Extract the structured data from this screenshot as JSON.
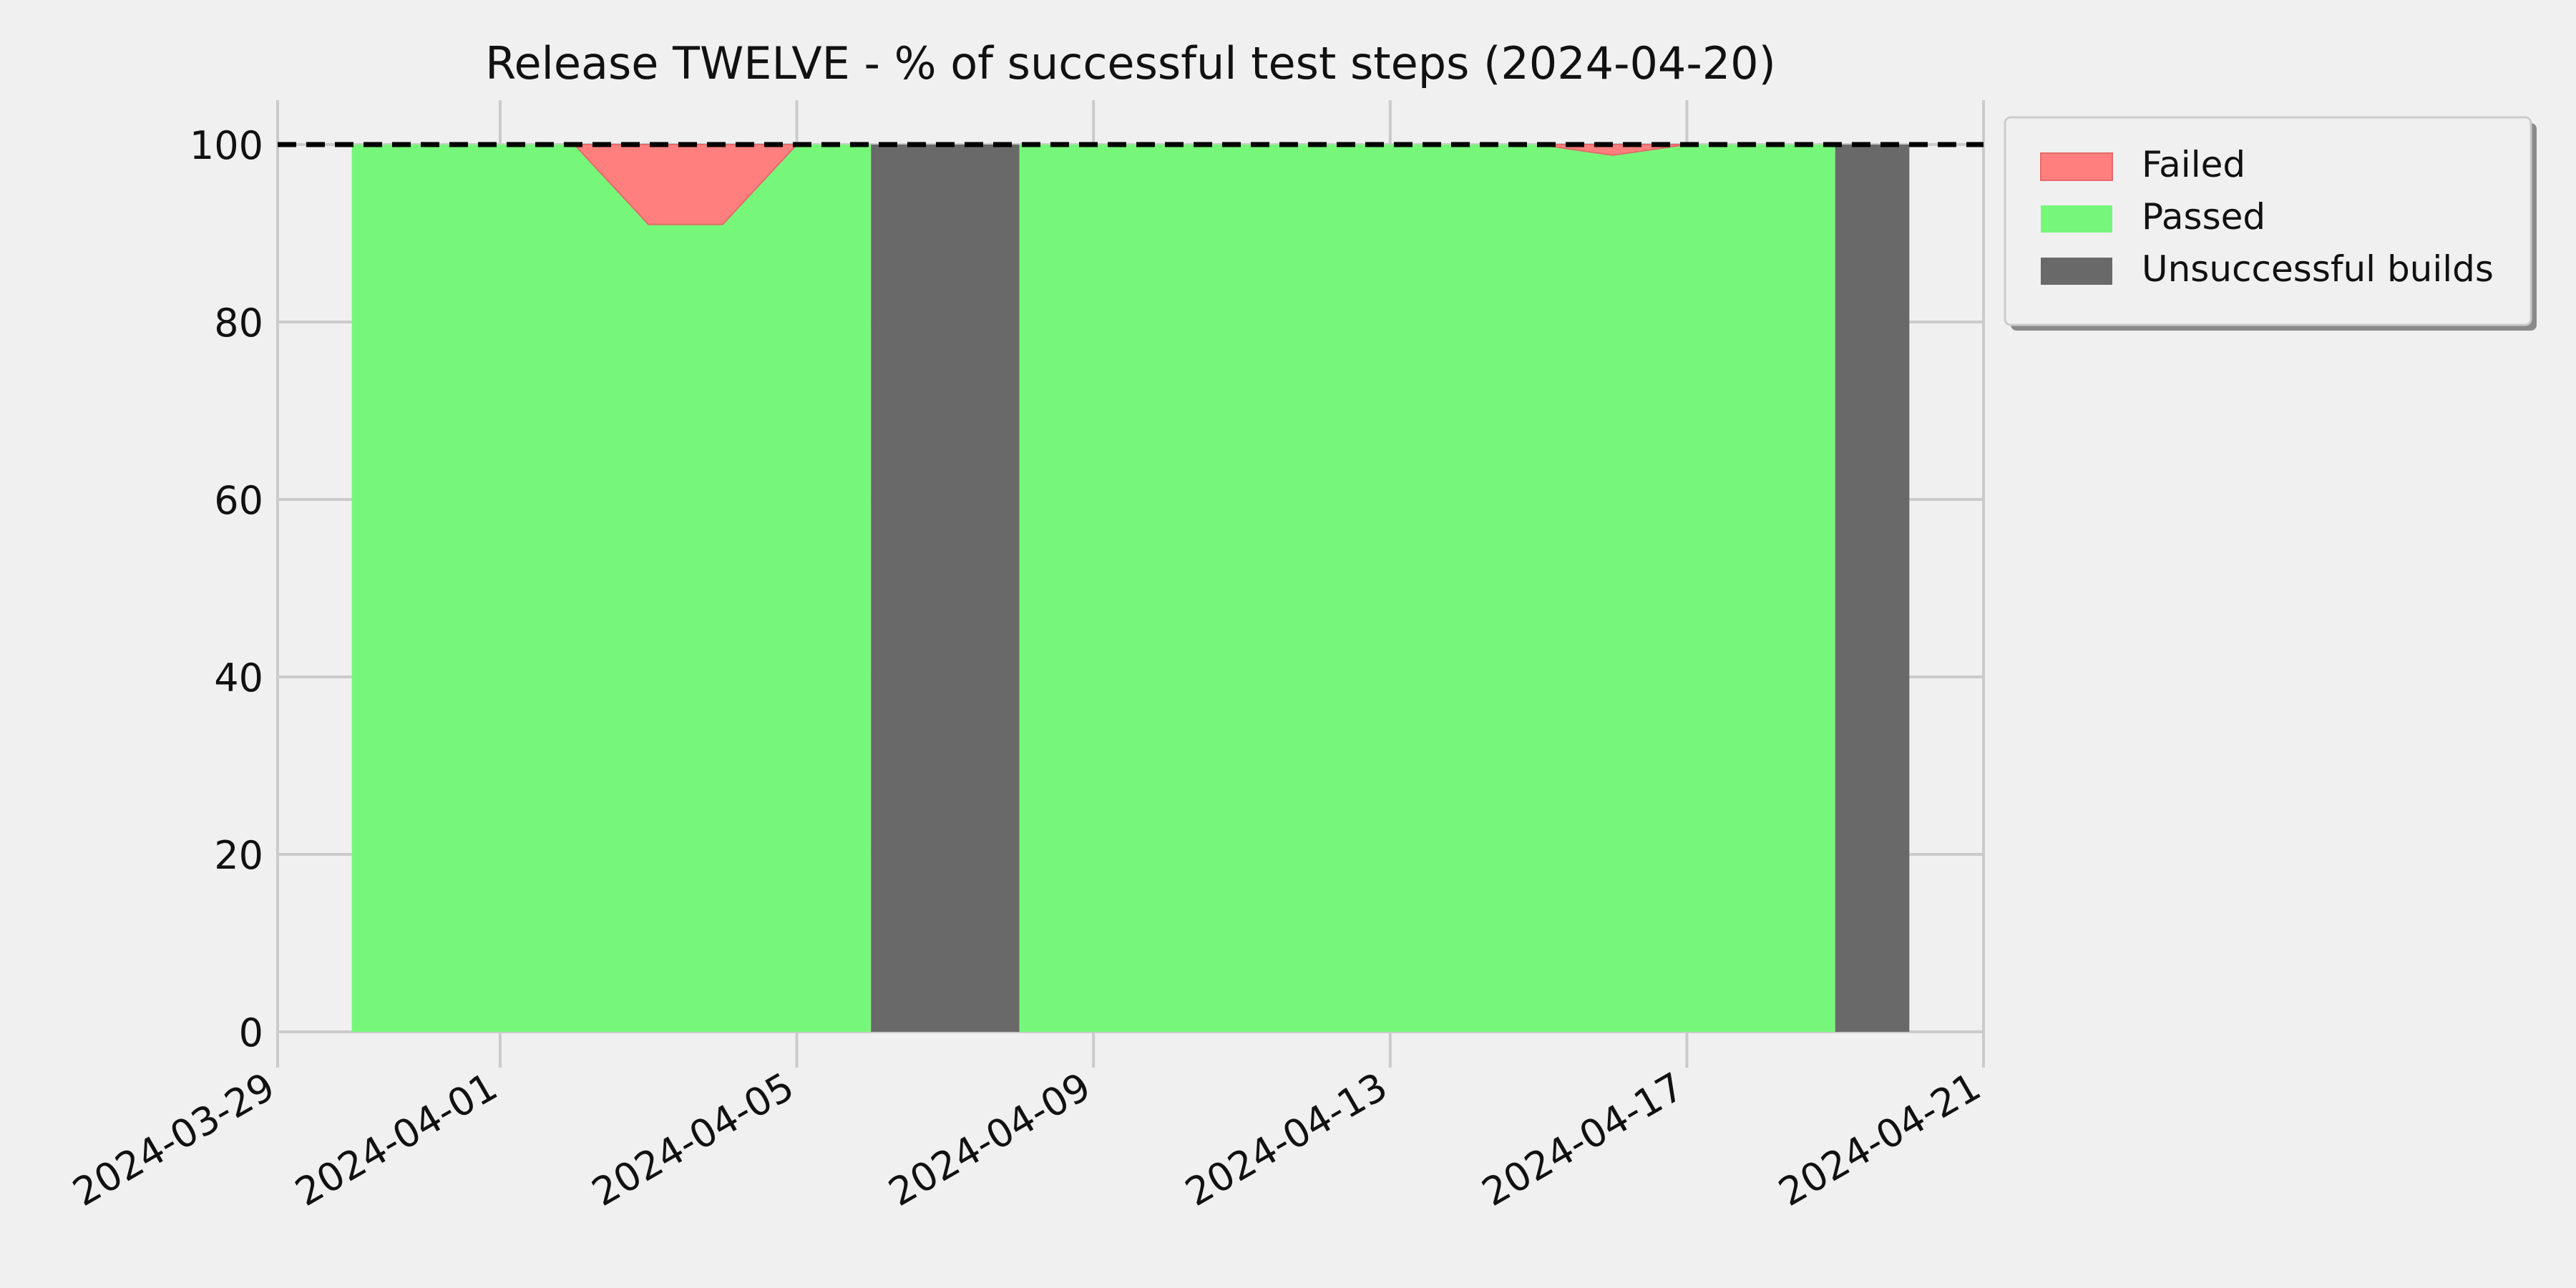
{
  "chart_data": {
    "type": "area",
    "title": "Release TWELVE - % of successful test steps (2024-04-20)",
    "xlabel": "",
    "ylabel": "",
    "xlim": [
      "2024-03-29",
      "2024-04-21"
    ],
    "ylim": [
      0,
      105
    ],
    "x_ticks": [
      "2024-03-29",
      "2024-04-01",
      "2024-04-05",
      "2024-04-09",
      "2024-04-13",
      "2024-04-17",
      "2024-04-21"
    ],
    "y_ticks": [
      0,
      20,
      40,
      60,
      80,
      100
    ],
    "grid": true,
    "threshold_line": {
      "y": 100,
      "style": "dashed",
      "color": "#000000"
    },
    "legend": {
      "position": "top-right-outside"
    },
    "series": [
      {
        "name": "Failed",
        "kind": "area",
        "color": "#ff7f7f",
        "points": [
          {
            "x": "2024-04-02",
            "y": 0
          },
          {
            "x": "2024-04-03",
            "y": 9
          },
          {
            "x": "2024-04-04",
            "y": 9
          },
          {
            "x": "2024-04-05",
            "y": 0
          },
          {
            "x": "2024-04-15",
            "y": 0
          },
          {
            "x": "2024-04-16",
            "y": 1.2
          },
          {
            "x": "2024-04-17",
            "y": 0
          }
        ]
      },
      {
        "name": "Passed",
        "kind": "area",
        "color": "#77f77a",
        "points": [
          {
            "x": "2024-03-30",
            "y": 100
          },
          {
            "x": "2024-03-31",
            "y": 100
          },
          {
            "x": "2024-04-01",
            "y": 100
          },
          {
            "x": "2024-04-02",
            "y": 100
          },
          {
            "x": "2024-04-03",
            "y": 91
          },
          {
            "x": "2024-04-04",
            "y": 91
          },
          {
            "x": "2024-04-05",
            "y": 100
          },
          {
            "x": "2024-04-06",
            "y": 100
          },
          {
            "x": "2024-04-08",
            "y": 100
          },
          {
            "x": "2024-04-15",
            "y": 100
          },
          {
            "x": "2024-04-16",
            "y": 98.8
          },
          {
            "x": "2024-04-17",
            "y": 100
          },
          {
            "x": "2024-04-19",
            "y": 100
          }
        ]
      },
      {
        "name": "Unsuccessful builds",
        "kind": "span",
        "color": "#696969",
        "spans": [
          {
            "start": "2024-04-06",
            "end": "2024-04-08",
            "value": 100
          },
          {
            "start": "2024-04-19",
            "end": "2024-04-20",
            "value": 100
          }
        ]
      }
    ]
  }
}
